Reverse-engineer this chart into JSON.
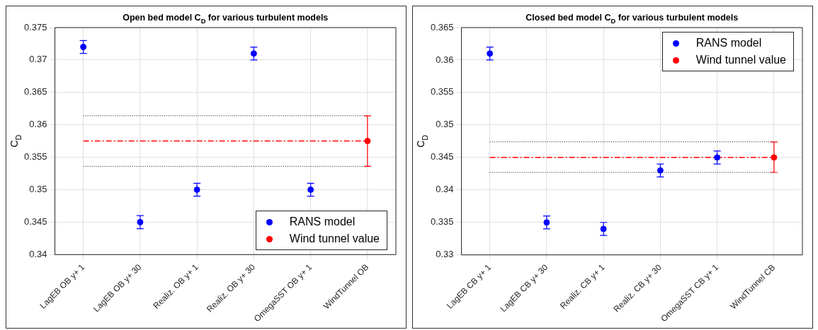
{
  "chart_data": [
    {
      "type": "scatter",
      "title": "Open bed model C$_{D}$ for various turbulent models",
      "ylabel": "C$_{D}$",
      "categories": [
        "LagEB OB y+ 1",
        "LagEB OB y+ 30",
        "Realiz. OB y+ 1",
        "Realiz. OB y+ 30",
        "OmegaSST OB y+ 1",
        "WindTunnel OB"
      ],
      "series": [
        {
          "name": "RANS model",
          "color": "#0000ff",
          "values": [
            0.372,
            0.345,
            0.35,
            0.371,
            0.35,
            null
          ],
          "errors": [
            0.001,
            0.001,
            0.001,
            0.001,
            0.001,
            null
          ]
        },
        {
          "name": "Wind tunnel value",
          "color": "#ff0000",
          "values": [
            null,
            null,
            null,
            null,
            null,
            0.3575
          ],
          "errors": [
            null,
            null,
            null,
            null,
            null,
            [
              0.3536,
              0.3614
            ]
          ]
        }
      ],
      "ref_lines": [
        {
          "axis": "y",
          "value": 0.3614,
          "color": "#000000",
          "line_style": "dotted"
        },
        {
          "axis": "y",
          "value": 0.3575,
          "color": "#ff0000",
          "line_style": "dashed"
        },
        {
          "axis": "y",
          "value": 0.3536,
          "color": "#000000",
          "line_style": "dotted"
        }
      ],
      "ylim": [
        0.34,
        0.375
      ],
      "yticks": [
        0.34,
        0.345,
        0.35,
        0.355,
        0.36,
        0.365,
        0.37,
        0.375
      ],
      "grid": true,
      "legend": "bottom right",
      "marker": "circle"
    },
    {
      "type": "scatter",
      "title": "Closed bed model C$_{D}$ for various turbulent models",
      "ylabel": "C$_{D}$",
      "categories": [
        "LagEB CB y+ 1",
        "LagEB CB y+ 30",
        "Realiz. CB y+ 1",
        "Realiz. CB y+ 30",
        "OmegaSST CB y+ 1",
        "WindTunnel CB"
      ],
      "series": [
        {
          "name": "RANS model",
          "color": "#0000ff",
          "values": [
            0.361,
            0.335,
            0.334,
            0.343,
            0.345,
            null
          ],
          "errors": [
            0.001,
            0.001,
            0.001,
            0.001,
            0.001,
            null
          ]
        },
        {
          "name": "Wind tunnel value",
          "color": "#ff0000",
          "values": [
            null,
            null,
            null,
            null,
            null,
            0.345
          ],
          "errors": [
            null,
            null,
            null,
            null,
            null,
            [
              0.3427,
              0.3474
            ]
          ]
        }
      ],
      "ref_lines": [
        {
          "axis": "y",
          "value": 0.3474,
          "color": "#000000",
          "line_style": "dotted"
        },
        {
          "axis": "y",
          "value": 0.345,
          "color": "#ff0000",
          "line_style": "dashed"
        },
        {
          "axis": "y",
          "value": 0.3427,
          "color": "#000000",
          "line_style": "dotted"
        }
      ],
      "ylim": [
        0.33,
        0.365
      ],
      "yticks": [
        0.33,
        0.335,
        0.34,
        0.345,
        0.35,
        0.355,
        0.36,
        0.365
      ],
      "grid": true,
      "legend": "top right",
      "marker": "circle"
    }
  ]
}
